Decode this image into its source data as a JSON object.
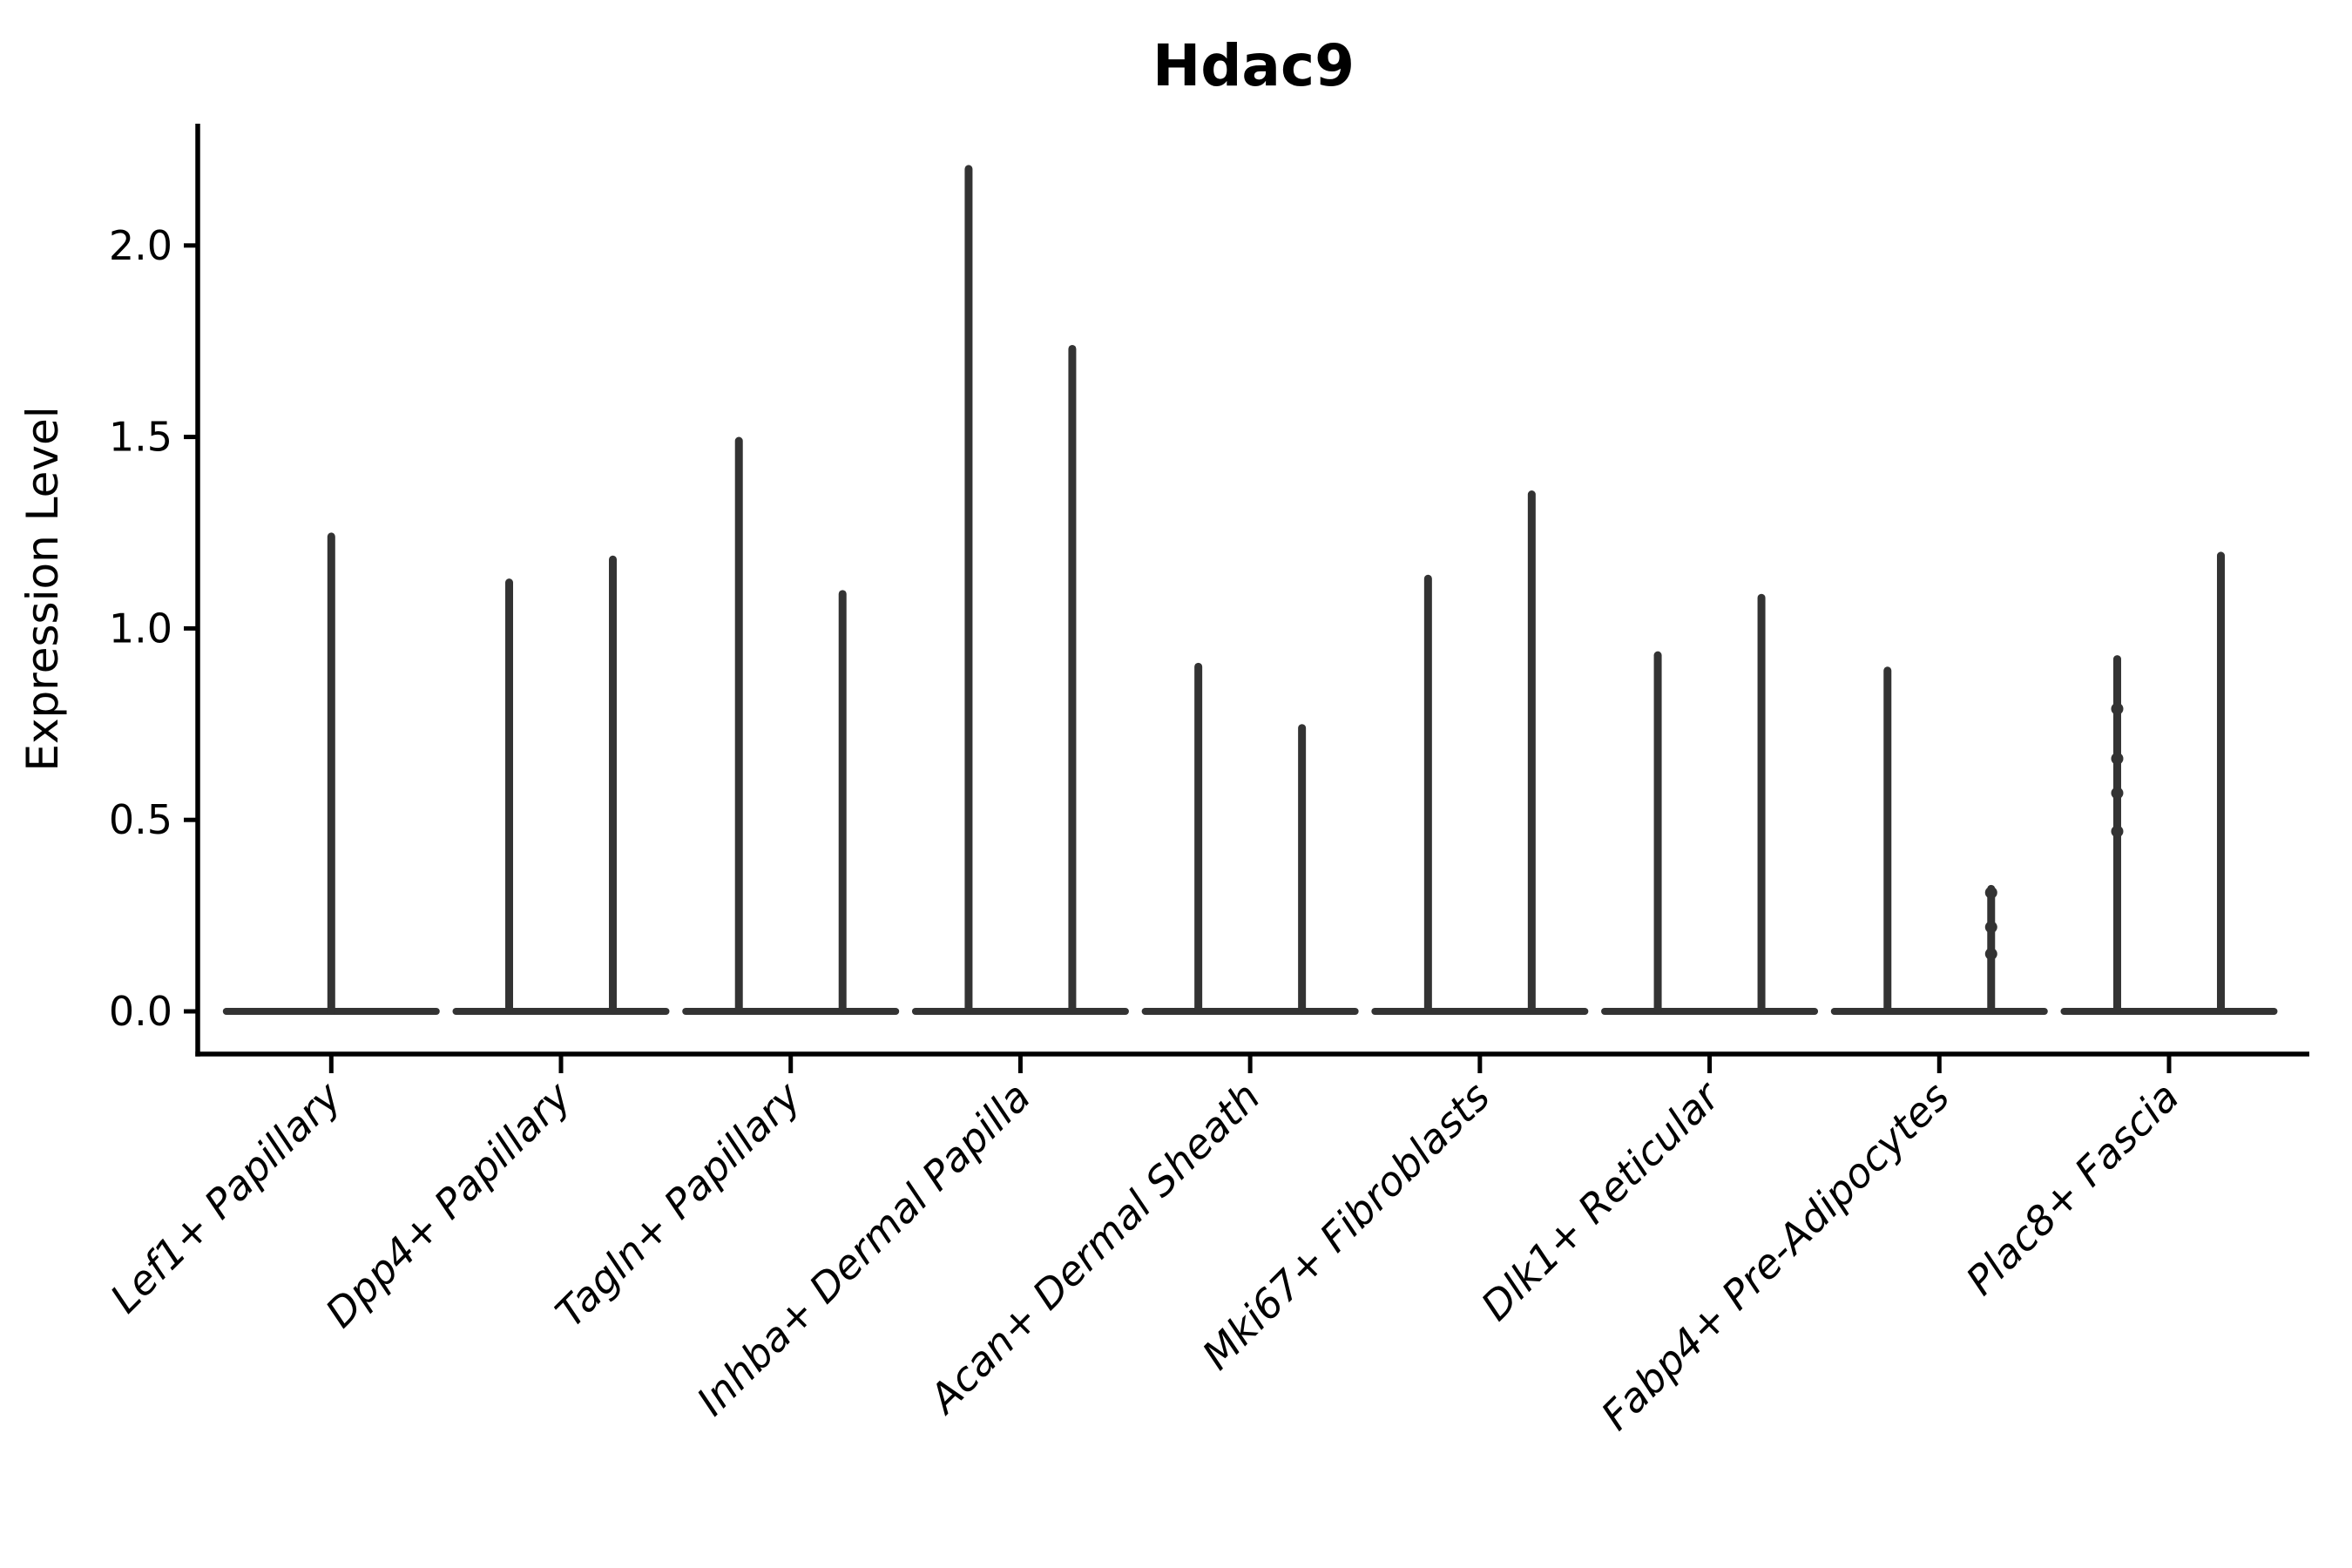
{
  "title": "Hdac9",
  "y_axis": {
    "label": "Expression Level",
    "tick_labels": [
      "0.0",
      "0.5",
      "1.0",
      "1.5",
      "2.0"
    ],
    "tick_values": [
      0.0,
      0.5,
      1.0,
      1.5,
      2.0
    ]
  },
  "x_axis": {
    "categories": [
      "Lef1+ Papillary",
      "Dpp4+ Papillary",
      "Tagln+ Papillary",
      "Inhba+ Dermal Papilla",
      "Acan+ Dermal Sheath",
      "Mki67+ Fibroblasts",
      "Dlk1+ Reticular",
      "Fabp4+ Pre-Adipocytes",
      "Plac8+ Fascia"
    ]
  },
  "chart_data": {
    "type": "violin",
    "title": "Hdac9",
    "xlabel": "",
    "ylabel": "Expression Level",
    "ylim": [
      0,
      2.32
    ],
    "grid": false,
    "legend": "none",
    "categories": [
      "Lef1+ Papillary",
      "Dpp4+ Papillary",
      "Tagln+ Papillary",
      "Inhba+ Dermal Papilla",
      "Acan+ Dermal Sheath",
      "Mki67+ Fibroblasts",
      "Dlk1+ Reticular",
      "Fabp4+ Pre-Adipocytes",
      "Plac8+ Fascia"
    ],
    "note": "Single-cell violin plot; nearly all cells at expression 0, so each violin collapses to a flat base at 0 plus a thin vertical spike. 'peaks' = top value reached by each spike (1 or 2 violins per category); 'dots' = visible jitter-point expression values.",
    "baseline_value": 0.0,
    "violins": [
      {
        "category": "Lef1+ Papillary",
        "peaks": [
          1.24
        ],
        "dots": [
          []
        ]
      },
      {
        "category": "Dpp4+ Papillary",
        "peaks": [
          1.12,
          1.18
        ],
        "dots": [
          [],
          []
        ]
      },
      {
        "category": "Tagln+ Papillary",
        "peaks": [
          1.49,
          1.09
        ],
        "dots": [
          [],
          []
        ]
      },
      {
        "category": "Inhba+ Dermal Papilla",
        "peaks": [
          2.2,
          1.73
        ],
        "dots": [
          [],
          []
        ]
      },
      {
        "category": "Acan+ Dermal Sheath",
        "peaks": [
          0.9,
          0.74
        ],
        "dots": [
          [],
          []
        ]
      },
      {
        "category": "Mki67+ Fibroblasts",
        "peaks": [
          1.13,
          1.35
        ],
        "dots": [
          [],
          []
        ]
      },
      {
        "category": "Dlk1+ Reticular",
        "peaks": [
          0.93,
          1.08
        ],
        "dots": [
          [],
          []
        ]
      },
      {
        "category": "Fabp4+ Pre-Adipocytes",
        "peaks": [
          0.89,
          0.32
        ],
        "dots": [
          [],
          [
            0.31,
            0.22,
            0.15
          ]
        ]
      },
      {
        "category": "Plac8+ Fascia",
        "peaks": [
          0.92,
          1.19
        ],
        "dots": [
          [
            0.79,
            0.66,
            0.57,
            0.47
          ],
          []
        ]
      }
    ],
    "colors": {
      "violin": "#333333",
      "axis": "#000000",
      "text": "#000000",
      "background": "#ffffff"
    }
  }
}
